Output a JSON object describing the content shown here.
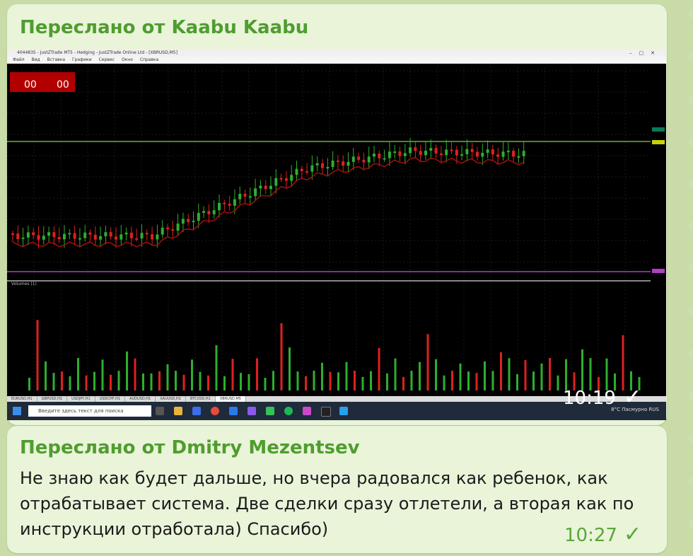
{
  "message1": {
    "forwarded_from": "Переслано от Kaabu Kaabu",
    "time": "10:19",
    "read_icon": "check-icon"
  },
  "message2": {
    "forwarded_from": "Переслано от Dmitry Mezentsev",
    "text": "Не знаю как будет дальше, но вчера радовался как ребенок, как отрабатывает система. Две сделки сразу отлетели, а вторая как по инструкции отработала) Спасибо)",
    "time": "10:27",
    "read_icon": "check-icon"
  },
  "screenshot": {
    "window_title": "4044835 - JustZTrade MT5 - Hedging - JustZTrade Online Ltd - [XBRUSD,M5]",
    "menu": [
      "Файл",
      "Вид",
      "Вставка",
      "Графики",
      "Сервис",
      "Окно",
      "Справка"
    ],
    "indicator_label": "Volumes (1)",
    "tabs": [
      "EURUSD,H1",
      "GBPUSD,H1",
      "USDJPY,H1",
      "USDCHF,H1",
      "AUDUSD,H1",
      "XAUUSD,H1",
      "BTCUSD,H1",
      "XBRUSD,M5"
    ],
    "search_placeholder": "Введите здесь текст для поиска",
    "tray_text": "8°C Пасмурно  RUS",
    "colors": {
      "bull": "#2fae2f",
      "bear": "#e02020",
      "level": "#3a7a1a",
      "purple": "#8a2a9a"
    }
  },
  "chart_data": {
    "type": "bar",
    "series": [
      {
        "name": "volumes_green",
        "values": [
          1,
          5,
          2,
          1,
          1,
          1,
          2,
          1,
          1,
          2,
          1,
          1,
          3,
          2,
          1,
          1,
          1,
          2,
          1,
          1,
          2,
          1,
          1,
          3,
          1,
          2,
          1,
          1,
          2,
          1,
          1,
          5,
          3,
          1,
          1,
          1,
          2,
          1,
          1,
          2,
          1,
          1,
          1,
          3,
          1,
          2,
          1,
          1,
          2,
          4,
          2,
          1,
          1,
          2,
          1,
          1,
          2,
          1,
          3,
          2,
          1,
          2,
          1,
          2,
          2,
          1,
          2,
          1,
          3,
          2,
          1,
          2,
          1,
          4,
          1,
          1
        ]
      }
    ]
  }
}
